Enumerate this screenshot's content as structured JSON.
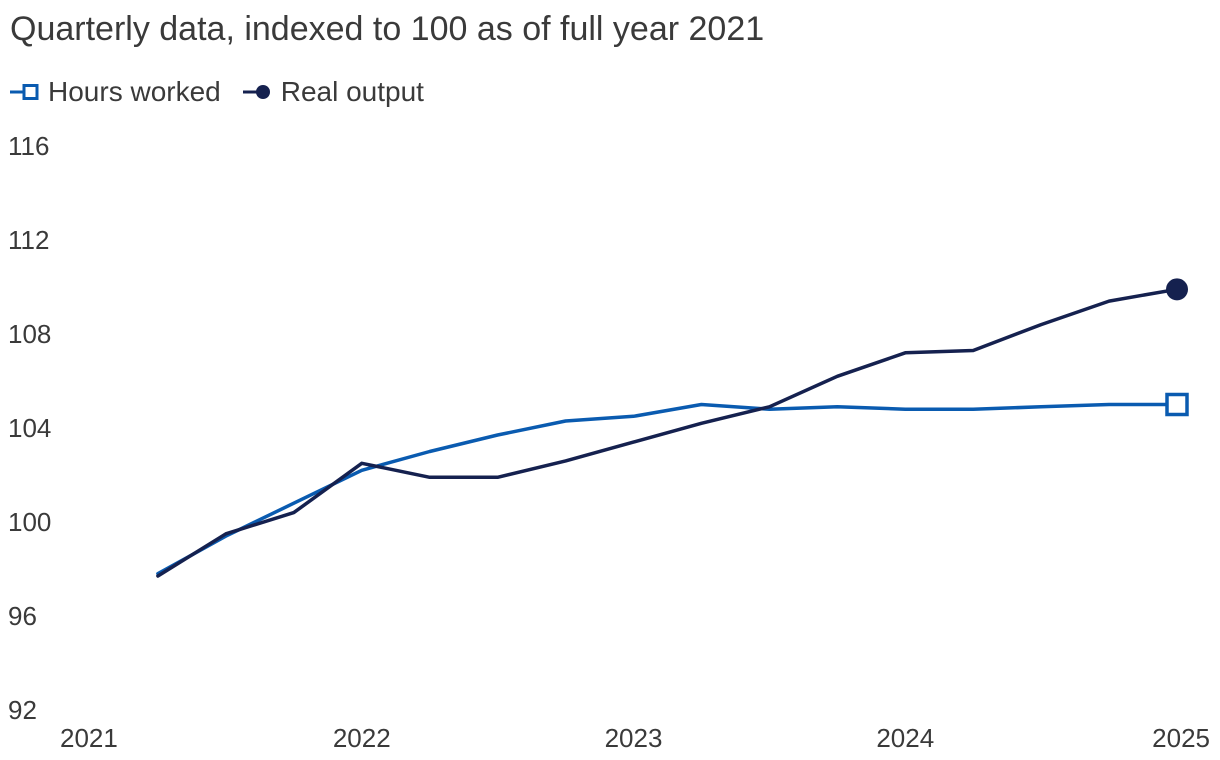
{
  "chart_data": {
    "type": "line",
    "title": "Quarterly data, indexed to 100 as of full year 2021",
    "xlabel": "",
    "ylabel": "",
    "xlim": [
      2021,
      2025
    ],
    "ylim": [
      92,
      116
    ],
    "x_ticks": [
      2021,
      2022,
      2023,
      2024,
      2025
    ],
    "y_ticks": [
      92,
      96,
      100,
      104,
      108,
      112,
      116
    ],
    "grid": false,
    "legend_position": "top-left",
    "x": [
      2021.25,
      2021.5,
      2021.75,
      2022.0,
      2022.25,
      2022.5,
      2022.75,
      2023.0,
      2023.25,
      2023.5,
      2023.75,
      2024.0,
      2024.25,
      2024.5,
      2024.75,
      2025.0
    ],
    "series": [
      {
        "name": "Hours worked",
        "color": "#0a5bb0",
        "end_marker": "open-square",
        "values": [
          97.8,
          99.4,
          100.8,
          102.2,
          103.0,
          103.7,
          104.3,
          104.5,
          105.0,
          104.8,
          104.9,
          104.8,
          104.8,
          104.9,
          105.0,
          105.0
        ]
      },
      {
        "name": "Real output",
        "color": "#15214f",
        "end_marker": "filled-circle",
        "values": [
          97.7,
          99.5,
          100.4,
          102.5,
          101.9,
          101.9,
          102.6,
          103.4,
          104.2,
          104.9,
          106.2,
          107.2,
          107.3,
          108.4,
          109.4,
          109.9
        ]
      }
    ]
  }
}
